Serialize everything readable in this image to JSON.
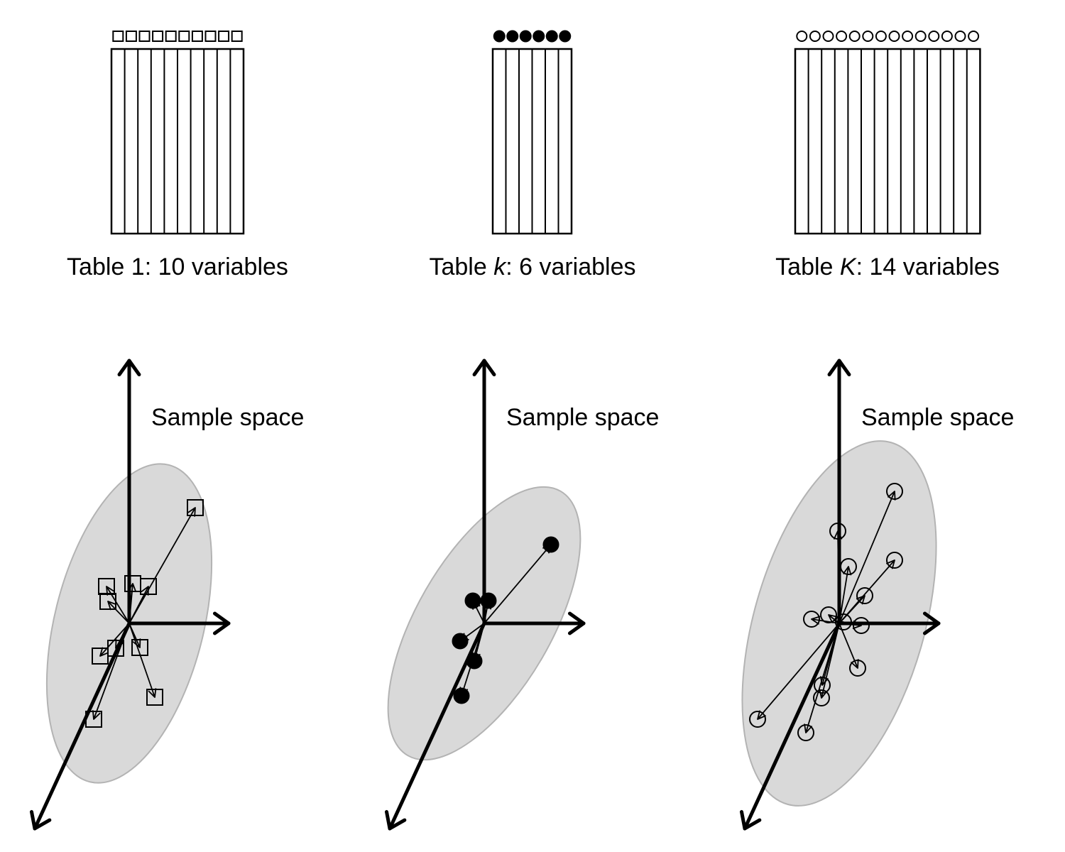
{
  "tables": [
    {
      "id": "table-1",
      "label_prefix": "Table ",
      "label_index": "1",
      "label_index_italic": false,
      "label_suffix": ": 10 variables",
      "variable_count": 10,
      "marker": "open-square"
    },
    {
      "id": "table-k",
      "label_prefix": "Table ",
      "label_index": "k",
      "label_index_italic": true,
      "label_suffix": ": 6 variables",
      "variable_count": 6,
      "marker": "filled-circle"
    },
    {
      "id": "table-K",
      "label_prefix": "Table ",
      "label_index": "K",
      "label_index_italic": true,
      "label_suffix": ": 14 variables",
      "variable_count": 14,
      "marker": "open-circle"
    }
  ],
  "sample_space": {
    "label": "Sample space",
    "ellipse_color": "#d9d9d9",
    "ellipse_stroke": "#b3b3b3",
    "line_color": "#000000"
  }
}
